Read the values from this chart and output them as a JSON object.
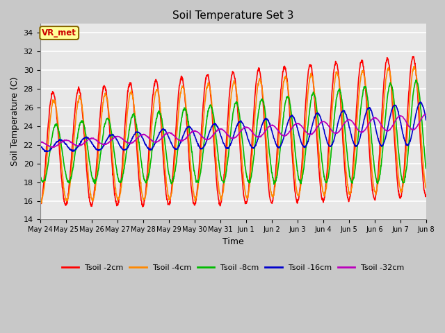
{
  "title": "Soil Temperature Set 3",
  "xlabel": "Time",
  "ylabel": "Soil Temperature (C)",
  "ylim": [
    14,
    35
  ],
  "yticks": [
    14,
    16,
    18,
    20,
    22,
    24,
    26,
    28,
    30,
    32,
    34
  ],
  "bg_color": "#e8e8e8",
  "fig_bg_color": "#c8c8c8",
  "annotation_text": "VR_met",
  "annotation_color": "#cc0000",
  "annotation_bg": "#ffff99",
  "annotation_border": "#886600",
  "line_colors": {
    "2cm": "#ff0000",
    "4cm": "#ff8800",
    "8cm": "#00bb00",
    "16cm": "#0000cc",
    "32cm": "#bb00bb"
  },
  "legend_labels": [
    "Tsoil -2cm",
    "Tsoil -4cm",
    "Tsoil -8cm",
    "Tsoil -16cm",
    "Tsoil -32cm"
  ],
  "x_tick_labels": [
    "May 24",
    "May 25",
    "May 26",
    "May 27",
    "May 28",
    "May 29",
    "May 30",
    "May 31",
    "Jun 1",
    "Jun 2",
    "Jun 3",
    "Jun 4",
    "Jun 5",
    "Jun 6",
    "Jun 7",
    "Jun 8"
  ],
  "num_days": 15,
  "points_per_day": 96,
  "figsize": [
    6.4,
    4.8
  ],
  "dpi": 100
}
